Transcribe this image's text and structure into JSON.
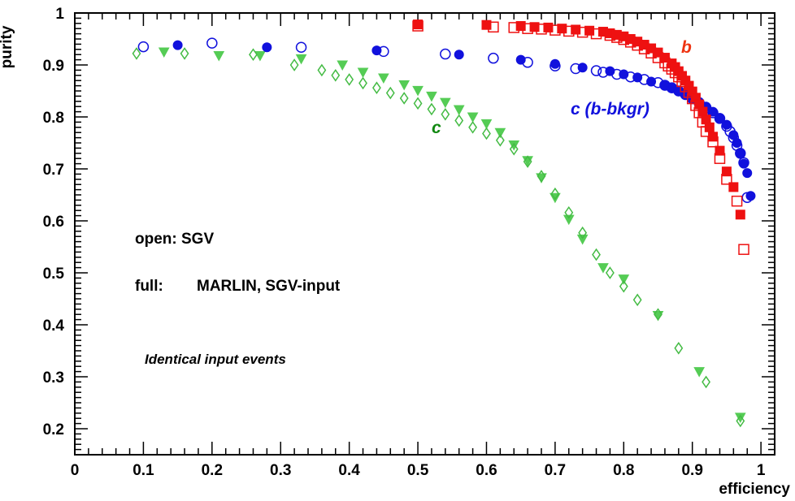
{
  "chart_data": {
    "type": "scatter",
    "xlabel": "efficiency",
    "ylabel": "purity",
    "xlim": [
      0,
      1.02
    ],
    "ylim": [
      0.15,
      1
    ],
    "x_ticks": [
      "0",
      "0.1",
      "0.2",
      "0.3",
      "0.4",
      "0.5",
      "0.6",
      "0.7",
      "0.8",
      "0.9",
      "1"
    ],
    "y_ticks": [
      "0.2",
      "0.3",
      "0.4",
      "0.5",
      "0.6",
      "0.7",
      "0.8",
      "0.9",
      "1"
    ],
    "grid": false,
    "annotations": {
      "legend_open": "open: SGV",
      "legend_full_prefix": "full:",
      "legend_full_text": "MARLIN, SGV-input",
      "note": "Identical input events"
    },
    "series_labels": {
      "b": "b",
      "c_bkgr": "c (b-bkgr)",
      "c": "c"
    },
    "colors": {
      "b": "#ee1111",
      "c_bkgr": "#1111dd",
      "c": "#55cc55"
    },
    "series": [
      {
        "key": "b",
        "style": "full",
        "marker": "square",
        "x": [
          0.5,
          0.6,
          0.65,
          0.67,
          0.69,
          0.71,
          0.73,
          0.75,
          0.77,
          0.78,
          0.79,
          0.8,
          0.81,
          0.82,
          0.83,
          0.84,
          0.85,
          0.86,
          0.87,
          0.875,
          0.88,
          0.885,
          0.89,
          0.895,
          0.9,
          0.905,
          0.91,
          0.915,
          0.92,
          0.925,
          0.93,
          0.94,
          0.95,
          0.96,
          0.97
        ],
        "y": [
          0.978,
          0.977,
          0.975,
          0.973,
          0.972,
          0.97,
          0.968,
          0.966,
          0.964,
          0.961,
          0.958,
          0.955,
          0.95,
          0.945,
          0.939,
          0.932,
          0.924,
          0.914,
          0.903,
          0.896,
          0.888,
          0.879,
          0.87,
          0.86,
          0.849,
          0.837,
          0.824,
          0.81,
          0.795,
          0.78,
          0.762,
          0.735,
          0.695,
          0.665,
          0.612
        ]
      },
      {
        "key": "b",
        "style": "open",
        "marker": "square",
        "x": [
          0.5,
          0.61,
          0.64,
          0.66,
          0.68,
          0.7,
          0.72,
          0.74,
          0.76,
          0.78,
          0.79,
          0.8,
          0.81,
          0.82,
          0.83,
          0.84,
          0.85,
          0.86,
          0.865,
          0.87,
          0.875,
          0.88,
          0.885,
          0.89,
          0.895,
          0.9,
          0.905,
          0.91,
          0.915,
          0.92,
          0.93,
          0.94,
          0.95,
          0.965,
          0.975
        ],
        "y": [
          0.975,
          0.973,
          0.972,
          0.97,
          0.969,
          0.967,
          0.965,
          0.963,
          0.96,
          0.957,
          0.953,
          0.949,
          0.944,
          0.938,
          0.931,
          0.923,
          0.914,
          0.904,
          0.898,
          0.892,
          0.885,
          0.877,
          0.868,
          0.858,
          0.847,
          0.835,
          0.822,
          0.808,
          0.79,
          0.772,
          0.752,
          0.72,
          0.68,
          0.638,
          0.545
        ]
      },
      {
        "key": "c_bkgr",
        "style": "full",
        "marker": "circle",
        "x": [
          0.15,
          0.28,
          0.44,
          0.56,
          0.65,
          0.7,
          0.74,
          0.78,
          0.8,
          0.82,
          0.84,
          0.86,
          0.87,
          0.88,
          0.89,
          0.9,
          0.91,
          0.92,
          0.93,
          0.94,
          0.95,
          0.96,
          0.965,
          0.97,
          0.975,
          0.98,
          0.985
        ],
        "y": [
          0.938,
          0.934,
          0.928,
          0.92,
          0.91,
          0.902,
          0.895,
          0.888,
          0.882,
          0.876,
          0.868,
          0.86,
          0.855,
          0.849,
          0.843,
          0.836,
          0.829,
          0.82,
          0.81,
          0.798,
          0.785,
          0.765,
          0.75,
          0.73,
          0.71,
          0.692,
          0.648
        ]
      },
      {
        "key": "c_bkgr",
        "style": "open",
        "marker": "circle",
        "x": [
          0.1,
          0.2,
          0.33,
          0.45,
          0.54,
          0.61,
          0.66,
          0.7,
          0.73,
          0.76,
          0.77,
          0.79,
          0.81,
          0.83,
          0.85,
          0.86,
          0.87,
          0.88,
          0.89,
          0.9,
          0.91,
          0.92,
          0.93,
          0.94,
          0.95,
          0.955,
          0.96,
          0.965,
          0.97,
          0.975,
          0.98
        ],
        "y": [
          0.935,
          0.942,
          0.934,
          0.926,
          0.921,
          0.913,
          0.905,
          0.898,
          0.893,
          0.889,
          0.886,
          0.882,
          0.877,
          0.872,
          0.866,
          0.861,
          0.856,
          0.85,
          0.843,
          0.835,
          0.827,
          0.818,
          0.808,
          0.797,
          0.782,
          0.772,
          0.76,
          0.745,
          0.73,
          0.712,
          0.645
        ]
      },
      {
        "key": "c",
        "style": "full",
        "marker": "triangle",
        "x": [
          0.13,
          0.21,
          0.27,
          0.33,
          0.39,
          0.42,
          0.45,
          0.48,
          0.5,
          0.52,
          0.54,
          0.56,
          0.58,
          0.6,
          0.62,
          0.64,
          0.66,
          0.68,
          0.7,
          0.72,
          0.74,
          0.77,
          0.8,
          0.85,
          0.91,
          0.97
        ],
        "y": [
          0.925,
          0.918,
          0.918,
          0.912,
          0.9,
          0.886,
          0.875,
          0.862,
          0.851,
          0.84,
          0.828,
          0.814,
          0.8,
          0.787,
          0.77,
          0.746,
          0.716,
          0.683,
          0.645,
          0.603,
          0.565,
          0.51,
          0.488,
          0.418,
          0.31,
          0.222
        ]
      },
      {
        "key": "c",
        "style": "open",
        "marker": "diamond",
        "x": [
          0.09,
          0.16,
          0.26,
          0.32,
          0.36,
          0.38,
          0.4,
          0.42,
          0.44,
          0.46,
          0.48,
          0.5,
          0.52,
          0.54,
          0.56,
          0.58,
          0.6,
          0.62,
          0.64,
          0.66,
          0.68,
          0.7,
          0.72,
          0.74,
          0.76,
          0.78,
          0.8,
          0.82,
          0.85,
          0.88,
          0.92,
          0.97
        ],
        "y": [
          0.922,
          0.922,
          0.92,
          0.9,
          0.89,
          0.88,
          0.872,
          0.865,
          0.856,
          0.846,
          0.836,
          0.826,
          0.815,
          0.805,
          0.793,
          0.78,
          0.768,
          0.755,
          0.738,
          0.714,
          0.686,
          0.652,
          0.616,
          0.577,
          0.535,
          0.5,
          0.474,
          0.448,
          0.42,
          0.355,
          0.29,
          0.215
        ]
      }
    ]
  }
}
